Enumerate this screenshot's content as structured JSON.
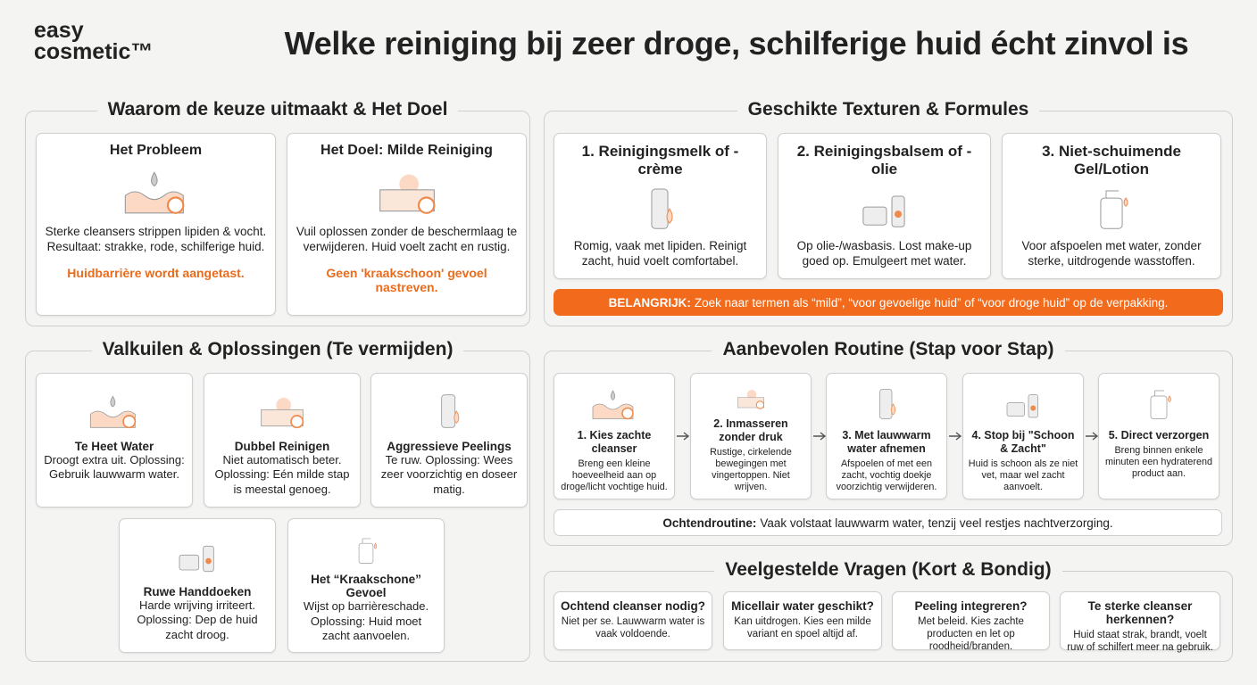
{
  "brand": {
    "line1": "easy",
    "line2": "cosmetic™"
  },
  "title": "Welke reiniging bij zeer droge, schilferige huid écht zinvol is",
  "why": {
    "title": "Waarom de keuze uitmaakt & Het Doel",
    "cards": [
      {
        "title": "Het Probleem",
        "text": "Sterke cleansers strippen lipiden & vocht. Resultaat: strakke, rode, schilferige huid.",
        "note": "Huidbarrière wordt aangetast."
      },
      {
        "title": "Het Doel: Milde Reiniging",
        "text": "Vuil oplossen zonder de beschermlaag te verwijderen. Huid voelt zacht en rustig.",
        "note": "Geen 'kraakschoon' gevoel nastreven."
      }
    ]
  },
  "textures": {
    "title": "Geschikte Texturen & Formules",
    "cards": [
      {
        "title": "1. Reinigingsmelk of -crème",
        "text": "Romig, vaak met lipiden. Reinigt zacht, huid voelt comfortabel."
      },
      {
        "title": "2. Reinigingsbalsem of -olie",
        "text": "Op olie-/wasbasis. Lost make-up goed op. Emulgeert met water."
      },
      {
        "title": "3. Niet-schuimende Gel/Lotion",
        "text": "Voor afspoelen met water, zonder sterke, uitdrogende wasstoffen."
      }
    ],
    "important": {
      "label": "BELANGRIJK:",
      "text": "Zoek naar termen als “mild”, “voor gevoelige huid” of “voor droge huid” op de verpakking."
    }
  },
  "pitfalls": {
    "title": "Valkuilen & Oplossingen (Te vermijden)",
    "cards": [
      {
        "title": "Te Heet Water",
        "text": "Droogt extra uit. Oplossing: Gebruik lauwwarm water."
      },
      {
        "title": "Dubbel Reinigen",
        "text": "Niet automatisch beter. Oplossing: Eén milde stap is meestal genoeg."
      },
      {
        "title": "Aggressieve Peelings",
        "text": "Te ruw. Oplossing: Wees zeer voorzichtig en doseer matig."
      },
      {
        "title": "Ruwe Handdoeken",
        "text": "Harde wrijving irriteert. Oplossing: Dep de huid zacht droog."
      },
      {
        "title": "Het “Kraakschone” Gevoel",
        "text": "Wijst op barrièreschade. Oplossing: Huid moet zacht aanvoelen."
      }
    ]
  },
  "routine": {
    "title": "Aanbevolen Routine (Stap voor Stap)",
    "steps": [
      {
        "title": "1. Kies zachte cleanser",
        "text": "Breng een kleine hoeveelheid aan op droge/licht vochtige huid."
      },
      {
        "title": "2. Inmasseren zonder druk",
        "text": "Rustige, cirkelende bewegingen met vingertoppen. Niet wrijven."
      },
      {
        "title": "3. Met lauwwarm water afnemen",
        "text": "Afspoelen of met een zacht, vochtig doekje voorzichtig verwijderen."
      },
      {
        "title": "4. Stop bij \"Schoon & Zacht\"",
        "text": "Huid is schoon als ze niet vet, maar wel zacht aanvoelt."
      },
      {
        "title": "5. Direct verzorgen",
        "text": "Breng binnen enkele minuten een hydraterend product aan."
      }
    ],
    "morning": {
      "label": "Ochtendroutine:",
      "text": "Vaak volstaat lauwwarm water, tenzij veel restjes nachtverzorging."
    }
  },
  "faq": {
    "title": "Veelgestelde Vragen (Kort & Bondig)",
    "items": [
      {
        "q": "Ochtend cleanser nodig?",
        "a": "Niet per se. Lauwwarm water is vaak voldoende."
      },
      {
        "q": "Micellair water geschikt?",
        "a": "Kan uitdrogen. Kies een milde variant en spoel altijd af."
      },
      {
        "q": "Peeling integreren?",
        "a": "Met beleid. Kies zachte producten en let op roodheid/branden."
      },
      {
        "q": "Te sterke cleanser herkennen?",
        "a": "Huid staat strak, brandt, voelt ruw of schilfert meer na gebruik."
      }
    ]
  }
}
